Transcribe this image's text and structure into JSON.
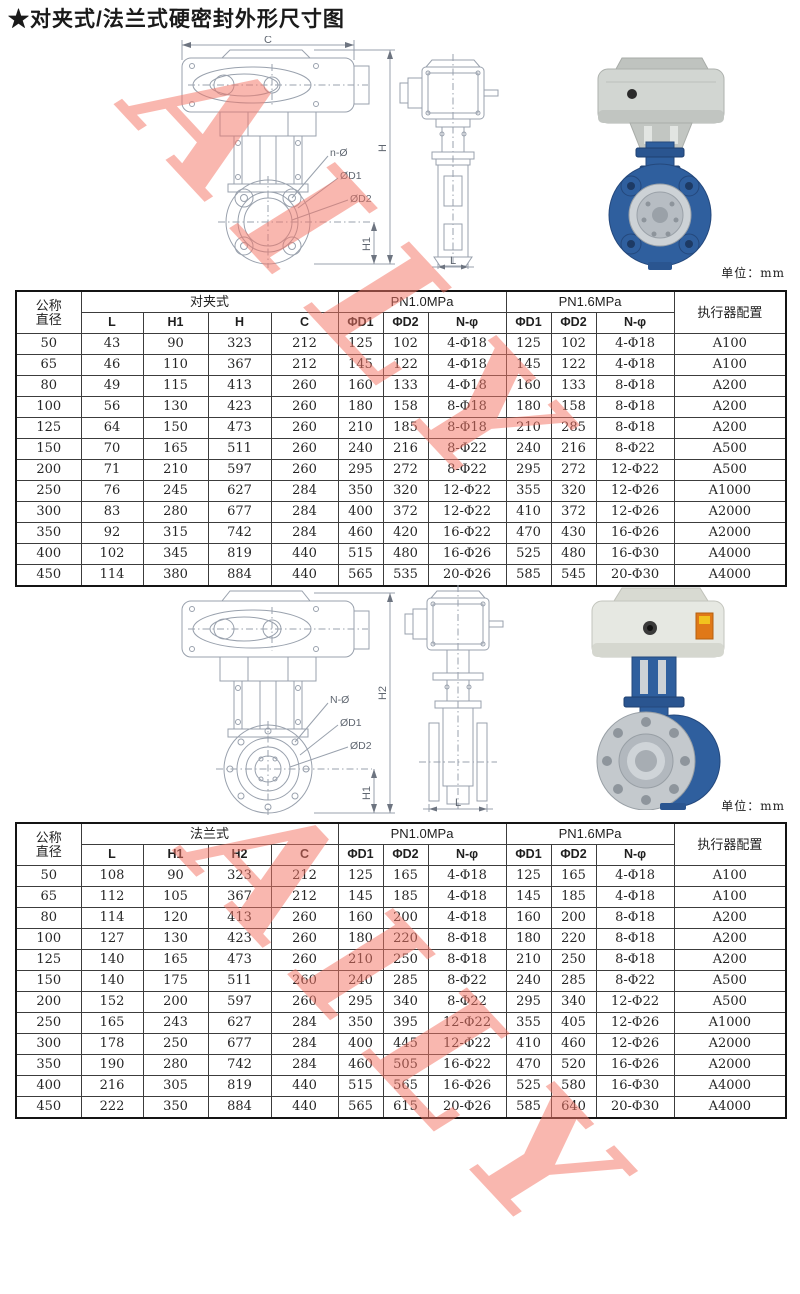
{
  "page": {
    "title": "★对夹式/法兰式硬密封外形尺寸图",
    "watermark": "AILY",
    "unit_label": "单位：mm"
  },
  "colors": {
    "watermark_salmon": "#f37465",
    "valve_blue": "#2f5f9e",
    "valve_blue_dark": "#24487c",
    "actuator_grey": "#d2d6d2",
    "actuator_cream": "#e6e8e2",
    "steel_grey": "#c4c9cd",
    "label_orange": "#e07818",
    "drawing_line": "#99a1ad",
    "table_border": "#3c3c3c"
  },
  "drawings": [
    {
      "labels": {
        "c": "C",
        "holes": "n-Ø",
        "d1": "ØD1",
        "d2": "ØD2",
        "height_total": "H",
        "height_lower": "H1",
        "length": "L"
      }
    },
    {
      "labels": {
        "holes": "N-Ø",
        "d1": "ØD1",
        "d2": "ØD2",
        "height_total": "H2",
        "height_lower": "H1",
        "length": "L"
      }
    }
  ],
  "tables": [
    {
      "dn_line1": "公称",
      "dn_line2": "直径",
      "type_label": "对夹式",
      "dim_headers": [
        "L",
        "H1",
        "H",
        "C"
      ],
      "pn10_label": "PN1.0MPa",
      "pn16_label": "PN1.6MPa",
      "hole_headers": [
        "ΦD1",
        "ΦD2",
        "N-φ"
      ],
      "actuator_header": "执行器配置",
      "rows": [
        [
          "50",
          "43",
          "90",
          "323",
          "212",
          "125",
          "102",
          "4-Φ18",
          "125",
          "102",
          "4-Φ18",
          "A100"
        ],
        [
          "65",
          "46",
          "110",
          "367",
          "212",
          "145",
          "122",
          "4-Φ18",
          "145",
          "122",
          "4-Φ18",
          "A100"
        ],
        [
          "80",
          "49",
          "115",
          "413",
          "260",
          "160",
          "133",
          "4-Φ18",
          "160",
          "133",
          "8-Φ18",
          "A200"
        ],
        [
          "100",
          "56",
          "130",
          "423",
          "260",
          "180",
          "158",
          "8-Φ18",
          "180",
          "158",
          "8-Φ18",
          "A200"
        ],
        [
          "125",
          "64",
          "150",
          "473",
          "260",
          "210",
          "185",
          "8-Φ18",
          "210",
          "285",
          "8-Φ18",
          "A200"
        ],
        [
          "150",
          "70",
          "165",
          "511",
          "260",
          "240",
          "216",
          "8-Φ22",
          "240",
          "216",
          "8-Φ22",
          "A500"
        ],
        [
          "200",
          "71",
          "210",
          "597",
          "260",
          "295",
          "272",
          "8-Φ22",
          "295",
          "272",
          "12-Φ22",
          "A500"
        ],
        [
          "250",
          "76",
          "245",
          "627",
          "284",
          "350",
          "320",
          "12-Φ22",
          "355",
          "320",
          "12-Φ26",
          "A1000"
        ],
        [
          "300",
          "83",
          "280",
          "677",
          "284",
          "400",
          "372",
          "12-Φ22",
          "410",
          "372",
          "12-Φ26",
          "A2000"
        ],
        [
          "350",
          "92",
          "315",
          "742",
          "284",
          "460",
          "420",
          "16-Φ22",
          "470",
          "430",
          "16-Φ26",
          "A2000"
        ],
        [
          "400",
          "102",
          "345",
          "819",
          "440",
          "515",
          "480",
          "16-Φ26",
          "525",
          "480",
          "16-Φ30",
          "A4000"
        ],
        [
          "450",
          "114",
          "380",
          "884",
          "440",
          "565",
          "535",
          "20-Φ26",
          "585",
          "545",
          "20-Φ30",
          "A4000"
        ]
      ]
    },
    {
      "dn_line1": "公称",
      "dn_line2": "直径",
      "type_label": "法兰式",
      "dim_headers": [
        "L",
        "H1",
        "H2",
        "C"
      ],
      "pn10_label": "PN1.0MPa",
      "pn16_label": "PN1.6MPa",
      "hole_headers": [
        "ΦD1",
        "ΦD2",
        "N-φ"
      ],
      "actuator_header": "执行器配置",
      "rows": [
        [
          "50",
          "108",
          "90",
          "323",
          "212",
          "125",
          "165",
          "4-Φ18",
          "125",
          "165",
          "4-Φ18",
          "A100"
        ],
        [
          "65",
          "112",
          "105",
          "367",
          "212",
          "145",
          "185",
          "4-Φ18",
          "145",
          "185",
          "4-Φ18",
          "A100"
        ],
        [
          "80",
          "114",
          "120",
          "413",
          "260",
          "160",
          "200",
          "4-Φ18",
          "160",
          "200",
          "8-Φ18",
          "A200"
        ],
        [
          "100",
          "127",
          "130",
          "423",
          "260",
          "180",
          "220",
          "8-Φ18",
          "180",
          "220",
          "8-Φ18",
          "A200"
        ],
        [
          "125",
          "140",
          "165",
          "473",
          "260",
          "210",
          "250",
          "8-Φ18",
          "210",
          "250",
          "8-Φ18",
          "A200"
        ],
        [
          "150",
          "140",
          "175",
          "511",
          "260",
          "240",
          "285",
          "8-Φ22",
          "240",
          "285",
          "8-Φ22",
          "A500"
        ],
        [
          "200",
          "152",
          "200",
          "597",
          "260",
          "295",
          "340",
          "8-Φ22",
          "295",
          "340",
          "12-Φ22",
          "A500"
        ],
        [
          "250",
          "165",
          "243",
          "627",
          "284",
          "350",
          "395",
          "12-Φ22",
          "355",
          "405",
          "12-Φ26",
          "A1000"
        ],
        [
          "300",
          "178",
          "250",
          "677",
          "284",
          "400",
          "445",
          "12-Φ22",
          "410",
          "460",
          "12-Φ26",
          "A2000"
        ],
        [
          "350",
          "190",
          "280",
          "742",
          "284",
          "460",
          "505",
          "16-Φ22",
          "470",
          "520",
          "16-Φ26",
          "A2000"
        ],
        [
          "400",
          "216",
          "305",
          "819",
          "440",
          "515",
          "565",
          "16-Φ26",
          "525",
          "580",
          "16-Φ30",
          "A4000"
        ],
        [
          "450",
          "222",
          "350",
          "884",
          "440",
          "565",
          "615",
          "20-Φ26",
          "585",
          "640",
          "20-Φ30",
          "A4000"
        ]
      ]
    }
  ]
}
